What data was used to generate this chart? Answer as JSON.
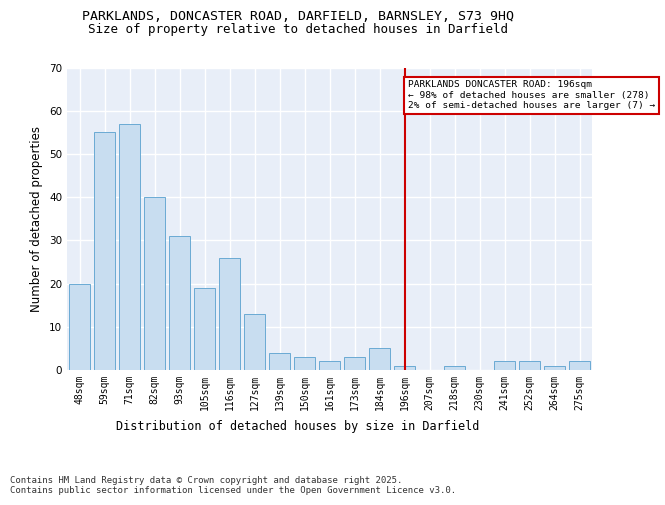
{
  "title": "PARKLANDS, DONCASTER ROAD, DARFIELD, BARNSLEY, S73 9HQ",
  "subtitle": "Size of property relative to detached houses in Darfield",
  "xlabel": "Distribution of detached houses by size in Darfield",
  "ylabel": "Number of detached properties",
  "categories": [
    "48sqm",
    "59sqm",
    "71sqm",
    "82sqm",
    "93sqm",
    "105sqm",
    "116sqm",
    "127sqm",
    "139sqm",
    "150sqm",
    "161sqm",
    "173sqm",
    "184sqm",
    "196sqm",
    "207sqm",
    "218sqm",
    "230sqm",
    "241sqm",
    "252sqm",
    "264sqm",
    "275sqm"
  ],
  "values": [
    20,
    55,
    57,
    40,
    31,
    19,
    26,
    13,
    4,
    3,
    2,
    3,
    5,
    1,
    0,
    1,
    0,
    2,
    2,
    1,
    2
  ],
  "bar_color": "#c8ddf0",
  "bar_edge_color": "#6aaad4",
  "vline_x_index": 13,
  "vline_color": "#cc0000",
  "annotation_text": "PARKLANDS DONCASTER ROAD: 196sqm\n← 98% of detached houses are smaller (278)\n2% of semi-detached houses are larger (7) →",
  "annotation_box_color": "#ffffff",
  "annotation_box_edge": "#cc0000",
  "ylim": [
    0,
    70
  ],
  "yticks": [
    0,
    10,
    20,
    30,
    40,
    50,
    60,
    70
  ],
  "background_color": "#e8eef8",
  "grid_color": "#ffffff",
  "footer": "Contains HM Land Registry data © Crown copyright and database right 2025.\nContains public sector information licensed under the Open Government Licence v3.0.",
  "title_fontsize": 9.5,
  "subtitle_fontsize": 9,
  "axis_label_fontsize": 8.5,
  "tick_fontsize": 7,
  "footer_fontsize": 6.5
}
